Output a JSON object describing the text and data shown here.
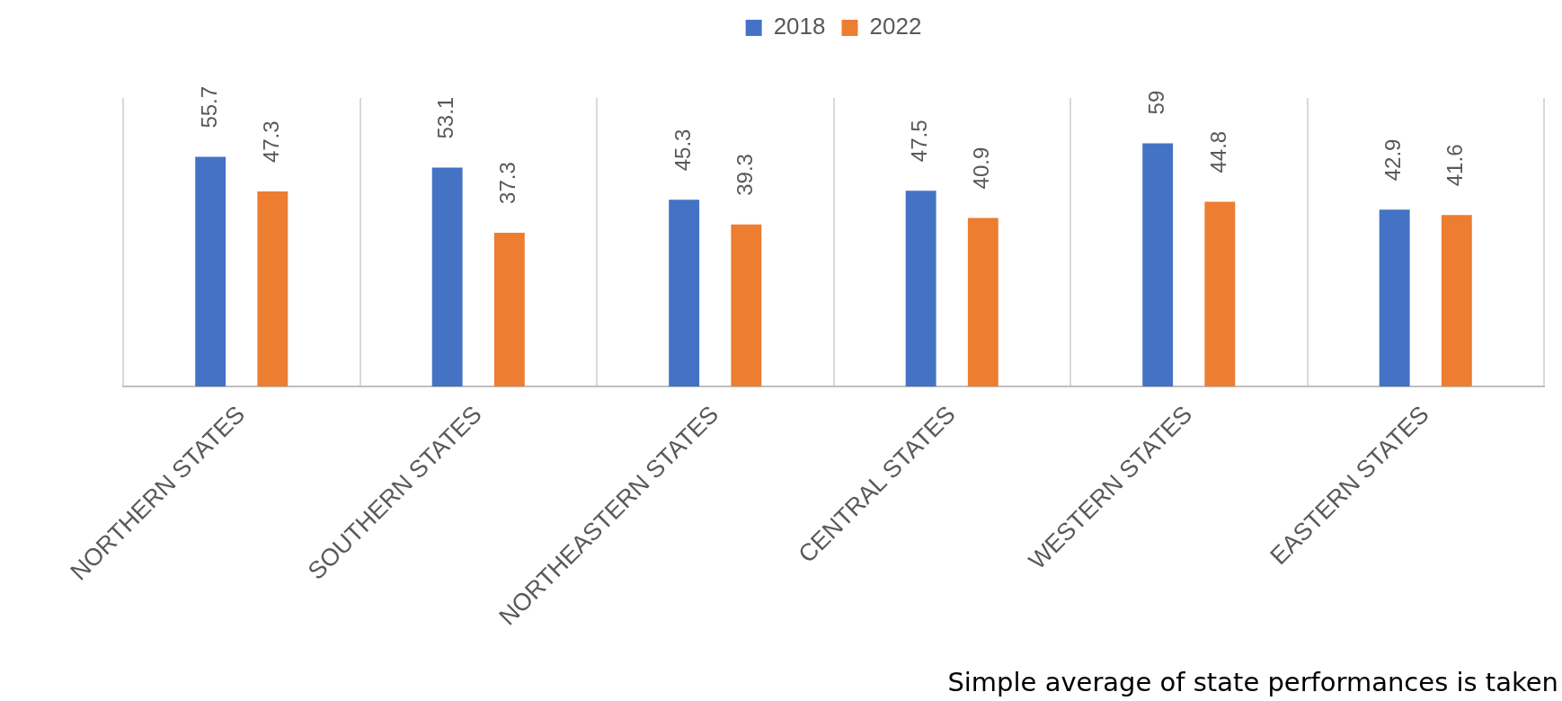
{
  "chart_data": {
    "type": "bar",
    "categories": [
      "NORTHERN STATES",
      "SOUTHERN STATES",
      "NORTHEASTERN STATES",
      "CENTRAL STATES",
      "WESTERN STATES",
      "EASTERN STATES"
    ],
    "series": [
      {
        "name": "2018",
        "color": "#4472c4",
        "values": [
          55.7,
          53.1,
          45.3,
          47.5,
          59,
          42.9
        ]
      },
      {
        "name": "2022",
        "color": "#ed7d31",
        "values": [
          47.3,
          37.3,
          39.3,
          40.9,
          44.8,
          41.6
        ]
      }
    ],
    "ylim": [
      0,
      70
    ],
    "tick_labels": "x",
    "grid": "x",
    "legend": "top",
    "data_labels": true,
    "annotations": [
      "Simple average of state performances is taken"
    ]
  }
}
